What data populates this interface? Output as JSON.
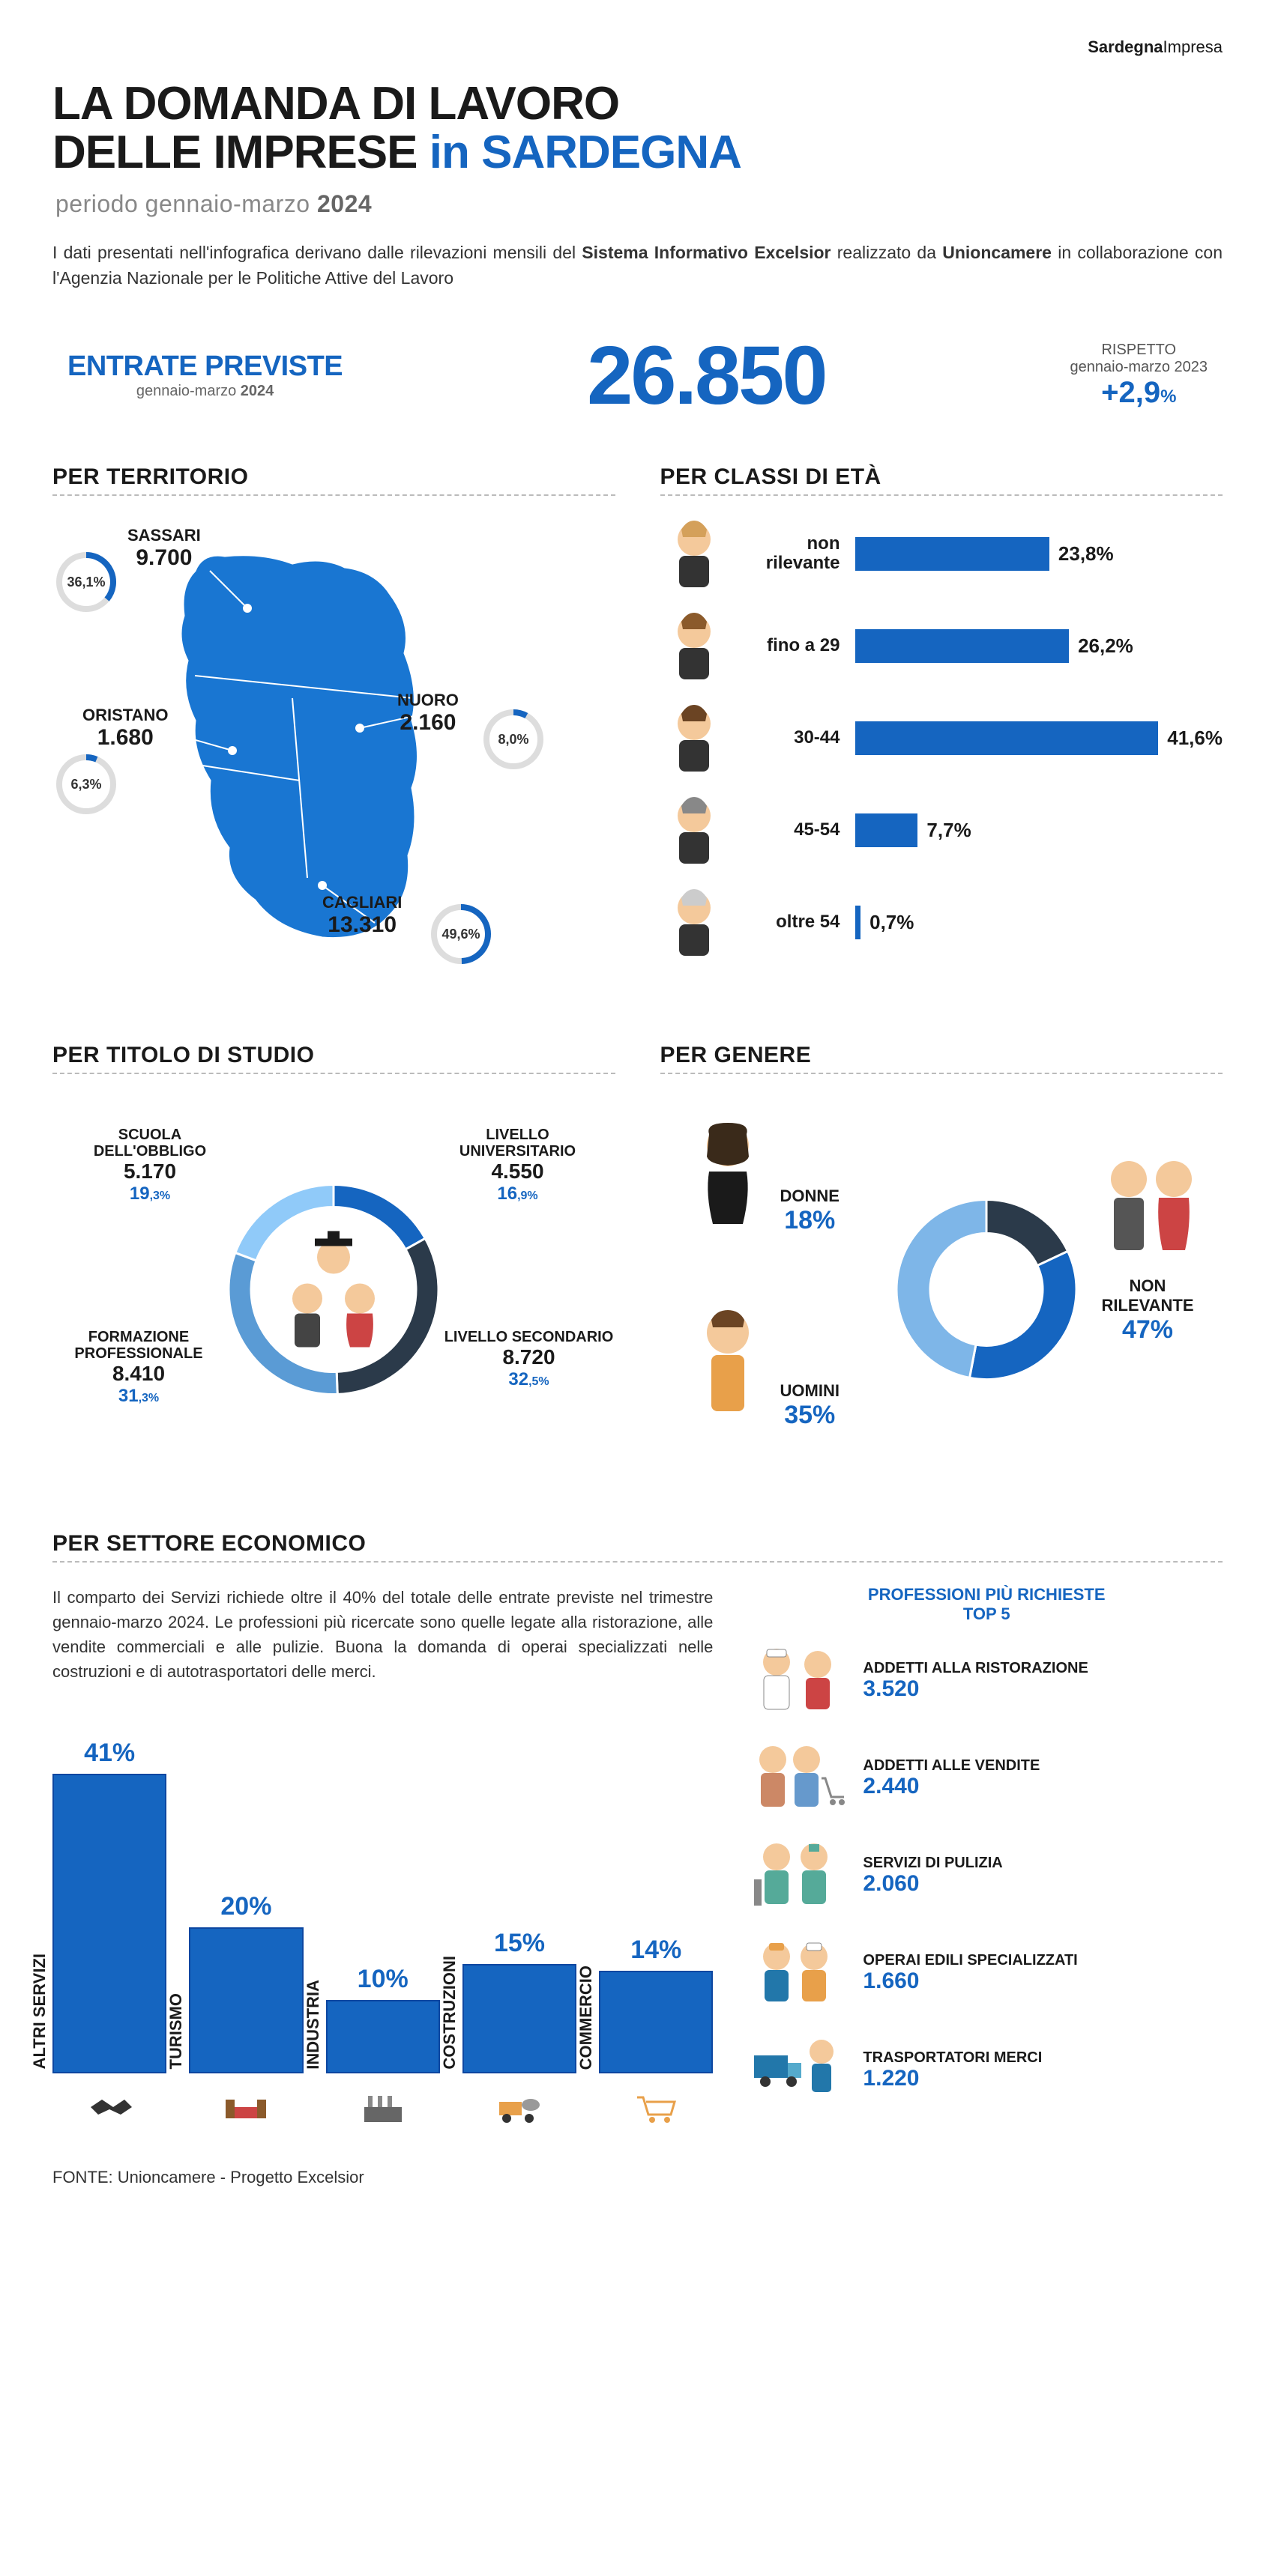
{
  "brand": {
    "bold": "Sardegna",
    "light": "Impresa"
  },
  "title": {
    "line1": "LA DOMANDA DI LAVORO",
    "line2a": "DELLE IMPRESE",
    "line2b": "in",
    "line2c": "SARDEGNA"
  },
  "subtitle": {
    "text": "periodo gennaio-marzo",
    "year": "2024"
  },
  "intro": {
    "p1a": "I dati presentati nell'infografica derivano dalle rilevazioni mensili del ",
    "p1b": "Sistema Informativo Excelsior",
    "p1c": " realizzato da ",
    "p1d": "Unioncamere",
    "p1e": " in collaborazione con l'Agenzia Nazionale per le Politiche Attive del Lavoro"
  },
  "entrate": {
    "label": "ENTRATE PREVISTE",
    "sub_a": "gennaio-marzo ",
    "sub_b": "2024",
    "value": "26.850",
    "right1": "RISPETTO",
    "right2": "gennaio-marzo 2023",
    "delta": "+2,9",
    "delta_unit": "%"
  },
  "sections": {
    "territory": "PER TERRITORIO",
    "age": "PER CLASSI DI ETÀ",
    "education": "PER TITOLO DI STUDIO",
    "gender": "PER GENERE",
    "sector": "PER SETTORE ECONOMICO"
  },
  "territory": {
    "sassari": {
      "name": "SASSARI",
      "value": "9.700",
      "pct": "36,1",
      "pct_num": 36.1
    },
    "nuoro": {
      "name": "NUORO",
      "value": "2.160",
      "pct": "8,0",
      "pct_num": 8.0
    },
    "oristano": {
      "name": "ORISTANO",
      "value": "1.680",
      "pct": "6,3",
      "pct_num": 6.3
    },
    "cagliari": {
      "name": "CAGLIARI",
      "value": "13.310",
      "pct": "49,6",
      "pct_num": 49.6
    }
  },
  "age": {
    "max_pct": 45,
    "rows": [
      {
        "label": "non rilevante",
        "pct": "23,8%",
        "pct_num": 23.8,
        "icon_color": "#d4a05a"
      },
      {
        "label": "fino a 29",
        "pct": "26,2%",
        "pct_num": 26.2,
        "icon_color": "#8b5a2b"
      },
      {
        "label": "30-44",
        "pct": "41,6%",
        "pct_num": 41.6,
        "icon_color": "#6b4423"
      },
      {
        "label": "45-54",
        "pct": "7,7%",
        "pct_num": 7.7,
        "icon_color": "#888888"
      },
      {
        "label": "oltre 54",
        "pct": "0,7%",
        "pct_num": 0.7,
        "icon_color": "#cccccc"
      }
    ],
    "bar_color": "#1565c0"
  },
  "education": {
    "items": [
      {
        "key": "universitario",
        "name": "LIVELLO UNIVERSITARIO",
        "value": "4.550",
        "pct_big": "16",
        "pct_small": ",9%",
        "pct_num": 16.9,
        "color": "#1565c0"
      },
      {
        "key": "secondario",
        "name": "LIVELLO SECONDARIO",
        "value": "8.720",
        "pct_big": "32",
        "pct_small": ",5%",
        "pct_num": 32.5,
        "color": "#2b3a4a"
      },
      {
        "key": "professionale",
        "name": "FORMAZIONE PROFESSIONALE",
        "value": "8.410",
        "pct_big": "31",
        "pct_small": ",3%",
        "pct_num": 31.3,
        "color": "#5a9bd5"
      },
      {
        "key": "obbligo",
        "name": "SCUOLA DELL'OBBLIGO",
        "value": "5.170",
        "pct_big": "19",
        "pct_small": ",3%",
        "pct_num": 19.3,
        "color": "#90caf9"
      }
    ]
  },
  "gender": {
    "items": [
      {
        "key": "donne",
        "name": "DONNE",
        "pct": "18%",
        "pct_num": 18,
        "color": "#2b3a4a"
      },
      {
        "key": "uomini",
        "name": "UOMINI",
        "pct": "35%",
        "pct_num": 35,
        "color": "#1565c0"
      },
      {
        "key": "non_rilevante",
        "name": "NON RILEVANTE",
        "pct": "47%",
        "pct_num": 47,
        "color": "#7eb6e8"
      }
    ]
  },
  "sector": {
    "text": "Il comparto dei Servizi richiede oltre il 40% del totale delle entrate previste nel trimestre gennaio-marzo 2024. Le professioni più ricercate sono quelle legate alla ristorazione, alle vendite commerciali e alle pulizie. Buona la domanda di operai specializzati nelle costruzioni e di autotrasportatori delle merci.",
    "bars": [
      {
        "name": "ALTRI SERVIZI",
        "pct": "41%",
        "pct_num": 41
      },
      {
        "name": "TURISMO",
        "pct": "20%",
        "pct_num": 20
      },
      {
        "name": "INDUSTRIA",
        "pct": "10%",
        "pct_num": 10
      },
      {
        "name": "COSTRUZIONI",
        "pct": "15%",
        "pct_num": 15
      },
      {
        "name": "COMMERCIO",
        "pct": "14%",
        "pct_num": 14
      }
    ],
    "bar_color": "#1565c0",
    "max_pct": 41
  },
  "top5": {
    "title1": "PROFESSIONI PIÙ RICHIESTE",
    "title2": "TOP 5",
    "items": [
      {
        "name": "ADDETTI ALLA RISTORAZIONE",
        "value": "3.520"
      },
      {
        "name": "ADDETTI ALLE VENDITE",
        "value": "2.440"
      },
      {
        "name": "SERVIZI DI PULIZIA",
        "value": "2.060"
      },
      {
        "name": "OPERAI EDILI SPECIALIZZATI",
        "value": "1.660"
      },
      {
        "name": "TRASPORTATORI MERCI",
        "value": "1.220"
      }
    ]
  },
  "source": "FONTE: Unioncamere - Progetto Excelsior",
  "colors": {
    "accent": "#1565c0",
    "map_fill": "#1976d2",
    "map_stroke": "#ffffff"
  }
}
